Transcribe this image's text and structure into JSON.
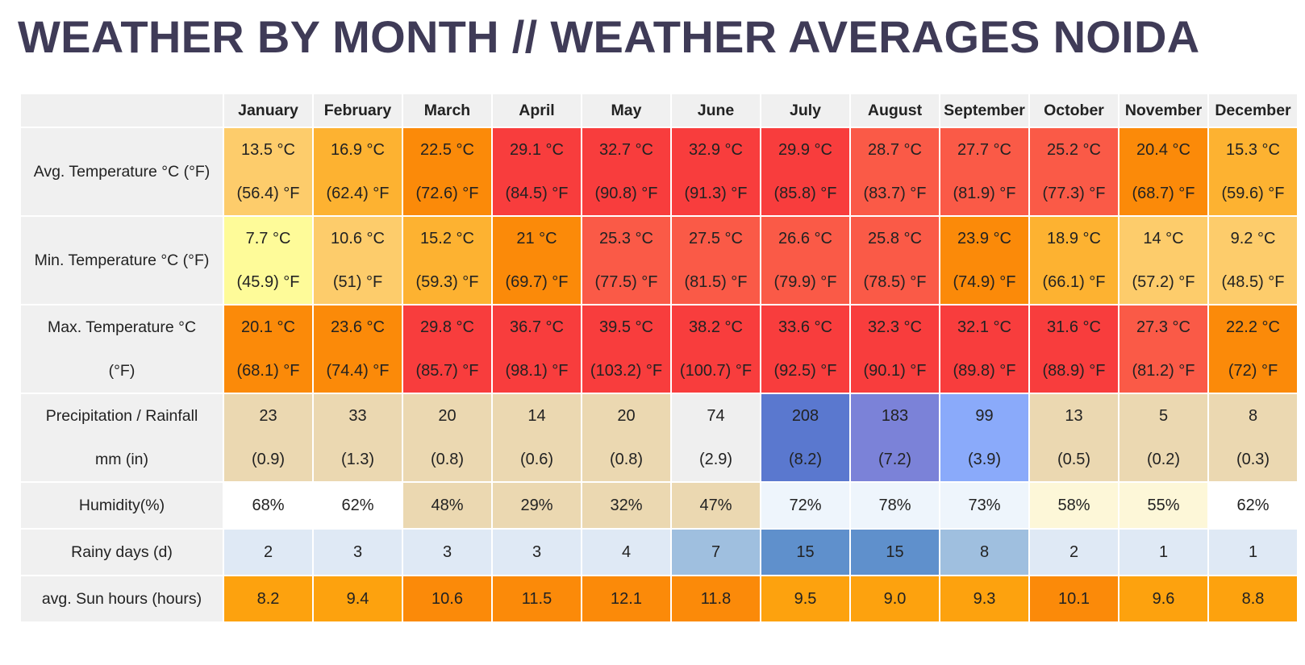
{
  "title": "WEATHER BY MONTH // WEATHER AVERAGES NOIDA",
  "months": [
    "January",
    "February",
    "March",
    "April",
    "May",
    "June",
    "July",
    "August",
    "September",
    "October",
    "November",
    "December"
  ],
  "rows": [
    {
      "label": [
        "Avg. Temperature °C (°F)",
        ""
      ],
      "cells": [
        {
          "l1": "13.5 °C",
          "l2": "(56.4) °F",
          "bg": "#fdcc6b"
        },
        {
          "l1": "16.9 °C",
          "l2": "(62.4) °F",
          "bg": "#fdb231"
        },
        {
          "l1": "22.5 °C",
          "l2": "(72.6) °F",
          "bg": "#fb8a09"
        },
        {
          "l1": "29.1 °C",
          "l2": "(84.5) °F",
          "bg": "#f83d3d"
        },
        {
          "l1": "32.7 °C",
          "l2": "(90.8) °F",
          "bg": "#f83d3d"
        },
        {
          "l1": "32.9 °C",
          "l2": "(91.3) °F",
          "bg": "#f83d3d"
        },
        {
          "l1": "29.9 °C",
          "l2": "(85.8) °F",
          "bg": "#f83d3d"
        },
        {
          "l1": "28.7 °C",
          "l2": "(83.7) °F",
          "bg": "#fa5a47"
        },
        {
          "l1": "27.7 °C",
          "l2": "(81.9) °F",
          "bg": "#fa5a47"
        },
        {
          "l1": "25.2 °C",
          "l2": "(77.3) °F",
          "bg": "#fa5a47"
        },
        {
          "l1": "20.4 °C",
          "l2": "(68.7) °F",
          "bg": "#fb8a09"
        },
        {
          "l1": "15.3 °C",
          "l2": "(59.6) °F",
          "bg": "#fdb231"
        }
      ]
    },
    {
      "label": [
        "Min. Temperature °C (°F)",
        ""
      ],
      "cells": [
        {
          "l1": "7.7 °C",
          "l2": "(45.9) °F",
          "bg": "#fefb99"
        },
        {
          "l1": "10.6 °C",
          "l2": "(51) °F",
          "bg": "#fdcc6b"
        },
        {
          "l1": "15.2 °C",
          "l2": "(59.3) °F",
          "bg": "#fdb231"
        },
        {
          "l1": "21 °C",
          "l2": "(69.7) °F",
          "bg": "#fb8a09"
        },
        {
          "l1": "25.3 °C",
          "l2": "(77.5) °F",
          "bg": "#fa5a47"
        },
        {
          "l1": "27.5 °C",
          "l2": "(81.5) °F",
          "bg": "#fa5a47"
        },
        {
          "l1": "26.6 °C",
          "l2": "(79.9) °F",
          "bg": "#fa5a47"
        },
        {
          "l1": "25.8 °C",
          "l2": "(78.5) °F",
          "bg": "#fa5a47"
        },
        {
          "l1": "23.9 °C",
          "l2": "(74.9) °F",
          "bg": "#fb8a09"
        },
        {
          "l1": "18.9 °C",
          "l2": "(66.1) °F",
          "bg": "#fdb231"
        },
        {
          "l1": "14 °C",
          "l2": "(57.2) °F",
          "bg": "#fdcc6b"
        },
        {
          "l1": "9.2 °C",
          "l2": "(48.5) °F",
          "bg": "#fdcc6b"
        }
      ]
    },
    {
      "label": [
        "Max. Temperature °C",
        "(°F)"
      ],
      "cells": [
        {
          "l1": "20.1 °C",
          "l2": "(68.1) °F",
          "bg": "#fb8a09"
        },
        {
          "l1": "23.6 °C",
          "l2": "(74.4) °F",
          "bg": "#fb8a09"
        },
        {
          "l1": "29.8 °C",
          "l2": "(85.7) °F",
          "bg": "#f83d3d"
        },
        {
          "l1": "36.7 °C",
          "l2": "(98.1) °F",
          "bg": "#f83d3d"
        },
        {
          "l1": "39.5 °C",
          "l2": "(103.2) °F",
          "bg": "#f83d3d"
        },
        {
          "l1": "38.2 °C",
          "l2": "(100.7) °F",
          "bg": "#f83d3d"
        },
        {
          "l1": "33.6 °C",
          "l2": "(92.5) °F",
          "bg": "#f83d3d"
        },
        {
          "l1": "32.3 °C",
          "l2": "(90.1) °F",
          "bg": "#f83d3d"
        },
        {
          "l1": "32.1 °C",
          "l2": "(89.8) °F",
          "bg": "#f83d3d"
        },
        {
          "l1": "31.6 °C",
          "l2": "(88.9) °F",
          "bg": "#f83d3d"
        },
        {
          "l1": "27.3 °C",
          "l2": "(81.2) °F",
          "bg": "#fa5a47"
        },
        {
          "l1": "22.2 °C",
          "l2": "(72) °F",
          "bg": "#fb8a09"
        }
      ]
    },
    {
      "label": [
        "Precipitation / Rainfall",
        "mm (in)"
      ],
      "cells": [
        {
          "l1": "23",
          "l2": "(0.9)",
          "bg": "#ebd8b1"
        },
        {
          "l1": "33",
          "l2": "(1.3)",
          "bg": "#ebd8b1"
        },
        {
          "l1": "20",
          "l2": "(0.8)",
          "bg": "#ebd8b1"
        },
        {
          "l1": "14",
          "l2": "(0.6)",
          "bg": "#ebd8b1"
        },
        {
          "l1": "20",
          "l2": "(0.8)",
          "bg": "#ebd8b1"
        },
        {
          "l1": "74",
          "l2": "(2.9)",
          "bg": "#efefef"
        },
        {
          "l1": "208",
          "l2": "(8.2)",
          "bg": "#5a78cf"
        },
        {
          "l1": "183",
          "l2": "(7.2)",
          "bg": "#7b82d8"
        },
        {
          "l1": "99",
          "l2": "(3.9)",
          "bg": "#8aaafa"
        },
        {
          "l1": "13",
          "l2": "(0.5)",
          "bg": "#ebd8b1"
        },
        {
          "l1": "5",
          "l2": "(0.2)",
          "bg": "#ebd8b1"
        },
        {
          "l1": "8",
          "l2": "(0.3)",
          "bg": "#ebd8b1"
        }
      ]
    },
    {
      "label": [
        "Humidity(%)"
      ],
      "cells": [
        {
          "l1": "68%",
          "bg": "#ffffff"
        },
        {
          "l1": "62%",
          "bg": "#ffffff"
        },
        {
          "l1": "48%",
          "bg": "#ebd8b1"
        },
        {
          "l1": "29%",
          "bg": "#ebd8b1"
        },
        {
          "l1": "32%",
          "bg": "#ebd8b1"
        },
        {
          "l1": "47%",
          "bg": "#ebd8b1"
        },
        {
          "l1": "72%",
          "bg": "#eef5fc"
        },
        {
          "l1": "78%",
          "bg": "#eef5fc"
        },
        {
          "l1": "73%",
          "bg": "#eef5fc"
        },
        {
          "l1": "58%",
          "bg": "#fdf7d8"
        },
        {
          "l1": "55%",
          "bg": "#fdf7d8"
        },
        {
          "l1": "62%",
          "bg": "#ffffff"
        }
      ]
    },
    {
      "label": [
        "Rainy days (d)"
      ],
      "cells": [
        {
          "l1": "2",
          "bg": "#dfe9f5"
        },
        {
          "l1": "3",
          "bg": "#dfe9f5"
        },
        {
          "l1": "3",
          "bg": "#dfe9f5"
        },
        {
          "l1": "3",
          "bg": "#dfe9f5"
        },
        {
          "l1": "4",
          "bg": "#dfe9f5"
        },
        {
          "l1": "7",
          "bg": "#9fbfdf"
        },
        {
          "l1": "15",
          "bg": "#5f90cc"
        },
        {
          "l1": "15",
          "bg": "#5f90cc"
        },
        {
          "l1": "8",
          "bg": "#9fbfdf"
        },
        {
          "l1": "2",
          "bg": "#dfe9f5"
        },
        {
          "l1": "1",
          "bg": "#dfe9f5"
        },
        {
          "l1": "1",
          "bg": "#dfe9f5"
        }
      ]
    },
    {
      "label": [
        "avg. Sun hours (hours)"
      ],
      "cells": [
        {
          "l1": "8.2",
          "bg": "#fda20e"
        },
        {
          "l1": "9.4",
          "bg": "#fda20e"
        },
        {
          "l1": "10.6",
          "bg": "#fb8a09"
        },
        {
          "l1": "11.5",
          "bg": "#fb8a09"
        },
        {
          "l1": "12.1",
          "bg": "#fb8a09"
        },
        {
          "l1": "11.8",
          "bg": "#fb8a09"
        },
        {
          "l1": "9.5",
          "bg": "#fda20e"
        },
        {
          "l1": "9.0",
          "bg": "#fda20e"
        },
        {
          "l1": "9.3",
          "bg": "#fda20e"
        },
        {
          "l1": "10.1",
          "bg": "#fb8a09"
        },
        {
          "l1": "9.6",
          "bg": "#fda20e"
        },
        {
          "l1": "8.8",
          "bg": "#fda20e"
        }
      ]
    }
  ]
}
